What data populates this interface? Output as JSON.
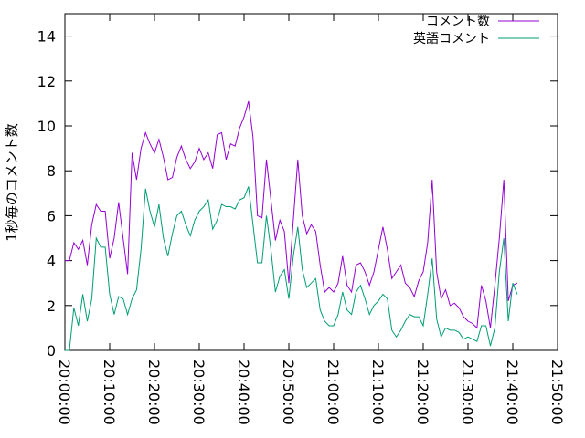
{
  "chart_data": {
    "type": "line",
    "title": "",
    "xlabel": "",
    "ylabel": "1秒毎のコメント数",
    "ylim": [
      0,
      15
    ],
    "yticks": [
      0,
      2,
      4,
      6,
      8,
      10,
      12,
      14
    ],
    "xlim": [
      "20:00:00",
      "21:50:00"
    ],
    "xticks": [
      "20:00:00",
      "20:10:00",
      "20:20:00",
      "20:30:00",
      "20:40:00",
      "20:50:00",
      "21:00:00",
      "21:10:00",
      "21:20:00",
      "21:30:00",
      "21:40:00",
      "21:50:00"
    ],
    "x_label_rotation": 90,
    "grid": false,
    "legend_position": "top-right",
    "series": [
      {
        "name": "コメント数",
        "color": "#9400d3",
        "x": [
          "20:00:00",
          "20:01:00",
          "20:02:00",
          "20:03:00",
          "20:04:00",
          "20:05:00",
          "20:06:00",
          "20:07:00",
          "20:08:00",
          "20:09:00",
          "20:10:00",
          "20:11:00",
          "20:12:00",
          "20:13:00",
          "20:14:00",
          "20:15:00",
          "20:16:00",
          "20:17:00",
          "20:18:00",
          "20:19:00",
          "20:20:00",
          "20:21:00",
          "20:22:00",
          "20:23:00",
          "20:24:00",
          "20:25:00",
          "20:26:00",
          "20:27:00",
          "20:28:00",
          "20:29:00",
          "20:30:00",
          "20:31:00",
          "20:32:00",
          "20:33:00",
          "20:34:00",
          "20:35:00",
          "20:36:00",
          "20:37:00",
          "20:38:00",
          "20:39:00",
          "20:40:00",
          "20:41:00",
          "20:42:00",
          "20:43:00",
          "20:44:00",
          "20:45:00",
          "20:46:00",
          "20:47:00",
          "20:48:00",
          "20:49:00",
          "20:50:00",
          "20:51:00",
          "20:52:00",
          "20:53:00",
          "20:54:00",
          "20:55:00",
          "20:56:00",
          "20:57:00",
          "20:58:00",
          "20:59:00",
          "21:00:00",
          "21:01:00",
          "21:02:00",
          "21:03:00",
          "21:04:00",
          "21:05:00",
          "21:06:00",
          "21:07:00",
          "21:08:00",
          "21:09:00",
          "21:10:00",
          "21:11:00",
          "21:12:00",
          "21:13:00",
          "21:14:00",
          "21:15:00",
          "21:16:00",
          "21:17:00",
          "21:18:00",
          "21:19:00",
          "21:20:00",
          "21:21:00",
          "21:22:00",
          "21:23:00",
          "21:24:00",
          "21:25:00",
          "21:26:00",
          "21:27:00",
          "21:28:00",
          "21:29:00",
          "21:30:00",
          "21:31:00",
          "21:32:00",
          "21:33:00",
          "21:34:00",
          "21:35:00",
          "21:36:00",
          "21:37:00",
          "21:38:00",
          "21:39:00",
          "21:40:00",
          "21:41:00"
        ],
        "values": [
          4.0,
          4.0,
          4.8,
          4.5,
          4.9,
          3.8,
          5.6,
          6.5,
          6.2,
          6.2,
          4.1,
          5.0,
          6.6,
          5.0,
          3.4,
          8.8,
          7.6,
          9.0,
          9.7,
          9.2,
          8.8,
          9.4,
          8.6,
          7.6,
          7.7,
          8.6,
          9.1,
          8.5,
          8.1,
          8.4,
          9.0,
          8.5,
          8.8,
          8.1,
          9.6,
          9.7,
          8.5,
          9.2,
          9.1,
          9.9,
          10.4,
          11.1,
          9.5,
          6.0,
          5.9,
          8.5,
          6.7,
          4.9,
          5.8,
          5.3,
          3.0,
          5.8,
          8.5,
          6.0,
          5.2,
          5.6,
          5.3,
          3.8,
          2.6,
          2.8,
          2.6,
          3.0,
          4.2,
          2.9,
          2.6,
          3.8,
          3.9,
          3.5,
          2.9,
          3.5,
          4.5,
          5.5,
          4.5,
          3.2,
          3.5,
          3.8,
          3.0,
          2.8,
          2.4,
          3.1,
          3.5,
          4.8,
          7.6,
          3.5,
          2.3,
          2.7,
          2.0,
          2.1,
          1.9,
          1.5,
          1.3,
          1.2,
          1.0,
          2.9,
          2.2,
          1.0,
          2.9,
          5.0,
          7.6,
          2.2,
          2.9,
          3.0
        ]
      },
      {
        "name": "英語コメント",
        "color": "#009e73",
        "x": [
          "20:00:00",
          "20:01:00",
          "20:02:00",
          "20:03:00",
          "20:04:00",
          "20:05:00",
          "20:06:00",
          "20:07:00",
          "20:08:00",
          "20:09:00",
          "20:10:00",
          "20:11:00",
          "20:12:00",
          "20:13:00",
          "20:14:00",
          "20:15:00",
          "20:16:00",
          "20:17:00",
          "20:18:00",
          "20:19:00",
          "20:20:00",
          "20:21:00",
          "20:22:00",
          "20:23:00",
          "20:24:00",
          "20:25:00",
          "20:26:00",
          "20:27:00",
          "20:28:00",
          "20:29:00",
          "20:30:00",
          "20:31:00",
          "20:32:00",
          "20:33:00",
          "20:34:00",
          "20:35:00",
          "20:36:00",
          "20:37:00",
          "20:38:00",
          "20:39:00",
          "20:40:00",
          "20:41:00",
          "20:42:00",
          "20:43:00",
          "20:44:00",
          "20:45:00",
          "20:46:00",
          "20:47:00",
          "20:48:00",
          "20:49:00",
          "20:50:00",
          "20:51:00",
          "20:52:00",
          "20:53:00",
          "20:54:00",
          "20:55:00",
          "20:56:00",
          "20:57:00",
          "20:58:00",
          "20:59:00",
          "21:00:00",
          "21:01:00",
          "21:02:00",
          "21:03:00",
          "21:04:00",
          "21:05:00",
          "21:06:00",
          "21:07:00",
          "21:08:00",
          "21:09:00",
          "21:10:00",
          "21:11:00",
          "21:12:00",
          "21:13:00",
          "21:14:00",
          "21:15:00",
          "21:16:00",
          "21:17:00",
          "21:18:00",
          "21:19:00",
          "21:20:00",
          "21:21:00",
          "21:22:00",
          "21:23:00",
          "21:24:00",
          "21:25:00",
          "21:26:00",
          "21:27:00",
          "21:28:00",
          "21:29:00",
          "21:30:00",
          "21:31:00",
          "21:32:00",
          "21:33:00",
          "21:34:00",
          "21:35:00",
          "21:36:00",
          "21:37:00",
          "21:38:00",
          "21:39:00",
          "21:40:00",
          "21:41:00"
        ],
        "values": [
          0.0,
          0.0,
          1.9,
          1.1,
          2.5,
          1.3,
          2.3,
          5.0,
          4.6,
          4.6,
          2.5,
          1.6,
          2.4,
          2.3,
          1.6,
          2.3,
          2.7,
          4.5,
          7.2,
          6.2,
          5.5,
          6.5,
          5.0,
          4.2,
          5.2,
          6.0,
          6.2,
          5.6,
          5.1,
          5.8,
          6.2,
          6.4,
          6.7,
          5.4,
          5.8,
          6.5,
          6.4,
          6.4,
          6.3,
          6.7,
          6.8,
          7.3,
          5.6,
          3.9,
          3.9,
          6.0,
          4.5,
          2.6,
          3.3,
          3.6,
          2.3,
          4.2,
          5.5,
          3.6,
          2.8,
          3.0,
          3.2,
          1.8,
          1.3,
          1.1,
          1.1,
          1.6,
          2.6,
          1.8,
          1.6,
          2.6,
          2.9,
          2.3,
          1.6,
          2.0,
          2.2,
          2.5,
          2.3,
          0.9,
          0.6,
          0.9,
          1.3,
          1.6,
          1.5,
          1.5,
          1.1,
          2.5,
          4.1,
          1.4,
          0.6,
          1.0,
          0.9,
          0.9,
          0.8,
          0.5,
          0.6,
          0.5,
          0.4,
          1.1,
          1.1,
          0.2,
          1.0,
          3.5,
          5.0,
          1.3,
          3.0,
          2.5
        ]
      }
    ]
  }
}
